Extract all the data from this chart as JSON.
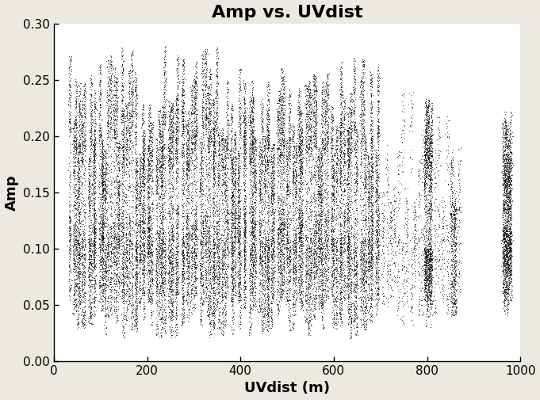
{
  "title": "Amp vs. UVdist",
  "xlabel": "UVdist (m)",
  "ylabel": "Amp",
  "xlim": [
    0,
    1000
  ],
  "ylim": [
    0.0,
    0.3
  ],
  "xticks": [
    0,
    200,
    400,
    600,
    800,
    1000
  ],
  "yticks": [
    0.0,
    0.05,
    0.1,
    0.15,
    0.2,
    0.25,
    0.3
  ],
  "background_color": "#ece9e0",
  "plot_bg_color": "#ffffff",
  "point_color": "#000000",
  "seed": 42,
  "title_fontsize": 16,
  "label_fontsize": 13,
  "n_baselines_dense": 120,
  "n_time_steps": 300,
  "n_baselines_mid": 20,
  "n_baselines_clust800": 8,
  "n_baselines_clust860": 5,
  "n_baselines_clust970": 12
}
